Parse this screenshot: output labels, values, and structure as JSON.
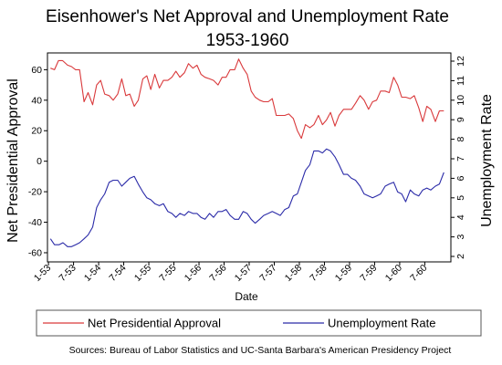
{
  "chart_data": {
    "type": "line",
    "title": "Eisenhower's Net Approval and Unemployment Rate",
    "subtitle": "1953-1960",
    "xlabel": "Date",
    "ylabel_left": "Net Presidential Approval",
    "ylabel_right": "Unemployment Rate",
    "x_ticks": [
      "1-53",
      "7-53",
      "1-54",
      "7-54",
      "1-55",
      "7-55",
      "1-56",
      "7-56",
      "1-57",
      "7-57",
      "1-58",
      "7-58",
      "1-59",
      "7-59",
      "1-60",
      "7-60"
    ],
    "y_left_ticks": [
      60,
      40,
      20,
      0,
      -20,
      -40,
      -60
    ],
    "y_left_lim": [
      -66,
      71
    ],
    "y_right_ticks": [
      2,
      3,
      4,
      5,
      6,
      7,
      8,
      9,
      10,
      11,
      12
    ],
    "y_right_lim": [
      1.72,
      12.42
    ],
    "grid": false,
    "legend_position": "bottom",
    "colors": {
      "approval": "#d9393b",
      "unemployment": "#2b2ba8"
    },
    "series": [
      {
        "name": "Net Presidential Approval",
        "axis": "left",
        "x": [
          1953.04,
          1953.12,
          1953.2,
          1953.28,
          1953.38,
          1953.46,
          1953.54,
          1953.62,
          1953.71,
          1953.79,
          1953.88,
          1953.96,
          1954.04,
          1954.12,
          1954.21,
          1954.29,
          1954.38,
          1954.46,
          1954.54,
          1954.62,
          1954.71,
          1954.79,
          1954.88,
          1954.96,
          1955.04,
          1955.12,
          1955.21,
          1955.29,
          1955.38,
          1955.46,
          1955.54,
          1955.62,
          1955.71,
          1955.79,
          1955.88,
          1955.96,
          1956.04,
          1956.12,
          1956.21,
          1956.29,
          1956.38,
          1956.46,
          1956.54,
          1956.62,
          1956.71,
          1956.79,
          1956.88,
          1956.96,
          1957.04,
          1957.12,
          1957.21,
          1957.29,
          1957.38,
          1957.46,
          1957.54,
          1957.62,
          1957.71,
          1957.79,
          1957.88,
          1957.96,
          1958.04,
          1958.12,
          1958.21,
          1958.29,
          1958.38,
          1958.46,
          1958.54,
          1958.62,
          1958.71,
          1958.79,
          1958.88,
          1958.96,
          1959.04,
          1959.12,
          1959.21,
          1959.29,
          1959.38,
          1959.46,
          1959.54,
          1959.62,
          1959.71,
          1959.79,
          1959.88,
          1959.96,
          1960.04,
          1960.12,
          1960.21,
          1960.29,
          1960.38,
          1960.46,
          1960.54,
          1960.62,
          1960.71,
          1960.79,
          1960.88
        ],
        "values": [
          61,
          60,
          66,
          66,
          63,
          62,
          60,
          60,
          39,
          45,
          37,
          50,
          53,
          44,
          43,
          40,
          44,
          54,
          43,
          44,
          36,
          40,
          54,
          56,
          47,
          57,
          48,
          53,
          53,
          55,
          59,
          55,
          58,
          64,
          61,
          63,
          57,
          55,
          54,
          53,
          50,
          55,
          55,
          60,
          60,
          67,
          61,
          57,
          46,
          42,
          40,
          39,
          39,
          41,
          30,
          30,
          30,
          31,
          28,
          20,
          15,
          24,
          22,
          24,
          30,
          24,
          27,
          32,
          23,
          30,
          34,
          34,
          34,
          38,
          43,
          40,
          34,
          39,
          40,
          46,
          46,
          45,
          55,
          50,
          42,
          42,
          41,
          43,
          35,
          26,
          36,
          34,
          26,
          33,
          33
        ]
      },
      {
        "name": "Unemployment Rate",
        "axis": "right",
        "x": [
          1953.04,
          1953.12,
          1953.21,
          1953.29,
          1953.38,
          1953.46,
          1953.54,
          1953.62,
          1953.71,
          1953.79,
          1953.88,
          1953.96,
          1954.04,
          1954.12,
          1954.21,
          1954.29,
          1954.38,
          1954.46,
          1954.54,
          1954.62,
          1954.71,
          1954.79,
          1954.88,
          1954.96,
          1955.04,
          1955.12,
          1955.21,
          1955.29,
          1955.38,
          1955.46,
          1955.54,
          1955.62,
          1955.71,
          1955.79,
          1955.88,
          1955.96,
          1956.04,
          1956.12,
          1956.21,
          1956.29,
          1956.38,
          1956.46,
          1956.54,
          1956.62,
          1956.71,
          1956.79,
          1956.88,
          1956.96,
          1957.04,
          1957.12,
          1957.21,
          1957.29,
          1957.38,
          1957.46,
          1957.54,
          1957.62,
          1957.71,
          1957.79,
          1957.88,
          1957.96,
          1958.04,
          1958.12,
          1958.21,
          1958.29,
          1958.38,
          1958.46,
          1958.54,
          1958.62,
          1958.71,
          1958.79,
          1958.88,
          1958.96,
          1959.04,
          1959.12,
          1959.21,
          1959.29,
          1959.38,
          1959.46,
          1959.54,
          1959.62,
          1959.71,
          1959.79,
          1959.88,
          1959.96,
          1960.04,
          1960.12,
          1960.21,
          1960.29,
          1960.38,
          1960.46,
          1960.54,
          1960.62,
          1960.71,
          1960.79,
          1960.88
        ],
        "values": [
          2.9,
          2.6,
          2.6,
          2.7,
          2.5,
          2.5,
          2.6,
          2.7,
          2.9,
          3.1,
          3.5,
          4.5,
          4.9,
          5.2,
          5.8,
          5.9,
          5.9,
          5.6,
          5.8,
          6.0,
          6.1,
          5.7,
          5.3,
          5.0,
          4.9,
          4.7,
          4.6,
          4.7,
          4.3,
          4.2,
          4.0,
          4.2,
          4.1,
          4.3,
          4.2,
          4.2,
          4.0,
          3.9,
          4.2,
          4.0,
          4.3,
          4.3,
          4.4,
          4.1,
          3.9,
          3.9,
          4.3,
          4.2,
          3.9,
          3.7,
          3.9,
          4.1,
          4.2,
          4.3,
          4.2,
          4.1,
          4.4,
          4.5,
          5.1,
          5.2,
          5.8,
          6.4,
          6.7,
          7.4,
          7.4,
          7.3,
          7.5,
          7.4,
          7.1,
          6.7,
          6.2,
          6.2,
          6.0,
          5.9,
          5.6,
          5.2,
          5.1,
          5.0,
          5.1,
          5.2,
          5.6,
          5.7,
          5.8,
          5.3,
          5.2,
          4.8,
          5.4,
          5.2,
          5.1,
          5.4,
          5.5,
          5.4,
          5.6,
          5.7,
          6.3
        ]
      }
    ],
    "source": "Sources: Bureau of Labor Statistics and UC-Santa Barbara's American Presidency Project"
  }
}
